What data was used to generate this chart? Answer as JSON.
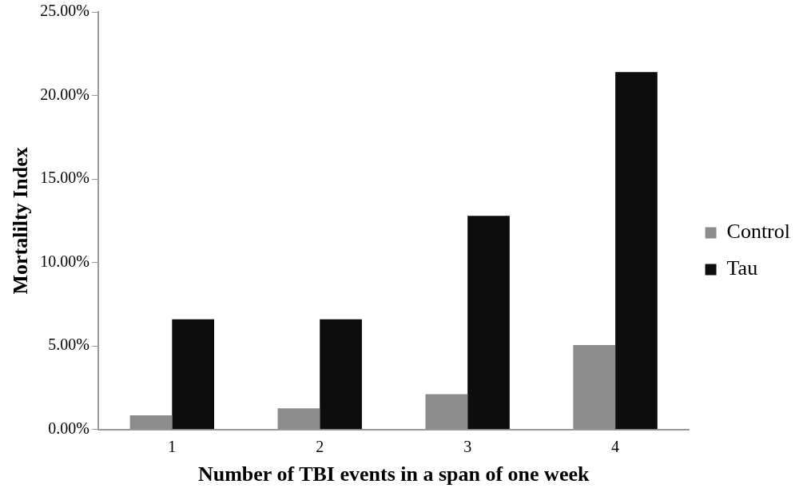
{
  "chart_data": {
    "type": "bar",
    "xlabel": "Number of TBI events in a span of one week",
    "ylabel": "Mortalilty Index",
    "categories": [
      "1",
      "2",
      "3",
      "4"
    ],
    "series": [
      {
        "name": "Control",
        "color": "#8c8c8c",
        "values": [
          0.85,
          1.27,
          2.12,
          5.06
        ]
      },
      {
        "name": "Tau",
        "color": "#0d0d0d",
        "values": [
          6.6,
          6.6,
          12.8,
          21.4
        ]
      }
    ],
    "ylim": [
      0,
      25
    ],
    "yticks": [
      {
        "value": 0,
        "label": "0.00%"
      },
      {
        "value": 5,
        "label": "5.00%"
      },
      {
        "value": 10,
        "label": "10.00%"
      },
      {
        "value": 15,
        "label": "15.00%"
      },
      {
        "value": 20,
        "label": "20.00%"
      },
      {
        "value": 25,
        "label": "25.00%"
      }
    ],
    "grid": false,
    "legend": "right"
  }
}
